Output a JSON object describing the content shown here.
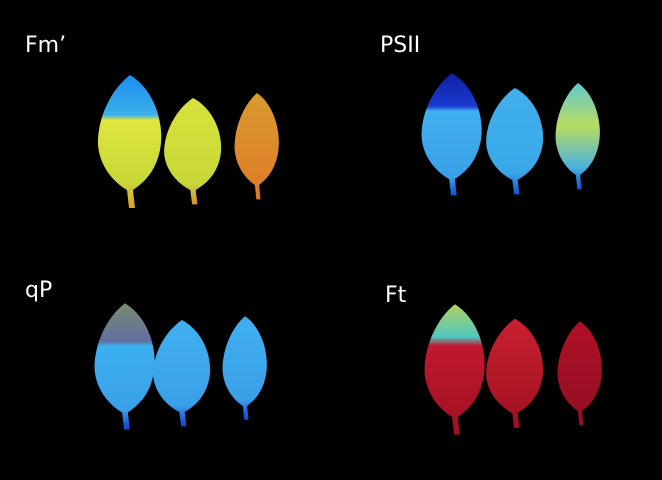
{
  "panels": [
    {
      "label": "Fm’"
    },
    {
      "label": "PSII"
    },
    {
      "label": "qP"
    },
    {
      "label": "Ft"
    }
  ]
}
